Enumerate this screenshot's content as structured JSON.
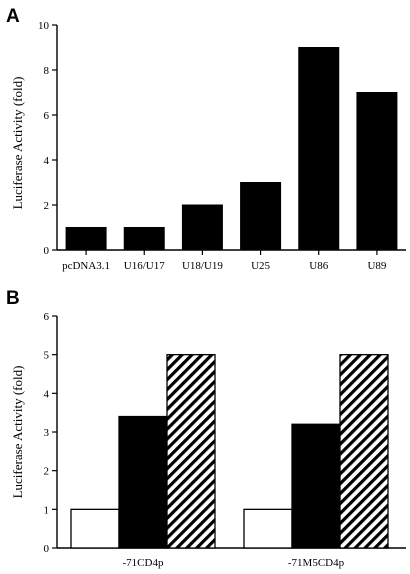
{
  "chart_data": [
    {
      "panel": "A",
      "type": "bar",
      "categories": [
        "pcDNA3.1",
        "U16/U17",
        "U18/U19",
        "U25",
        "U86",
        "U89"
      ],
      "values": [
        1,
        1,
        2,
        3,
        9,
        7
      ],
      "ylabel": "Luciferase Activity (fold)",
      "ylim": [
        0,
        10
      ],
      "yticks": [
        0,
        2,
        4,
        6,
        8,
        10
      ],
      "bar_color": "#000000",
      "grid": false
    },
    {
      "panel": "B",
      "type": "bar",
      "categories": [
        "-71CD4p",
        "-71M5CD4p"
      ],
      "series": [
        {
          "values": [
            1,
            1
          ],
          "fill": "white"
        },
        {
          "values": [
            3.4,
            3.2
          ],
          "fill": "black"
        },
        {
          "values": [
            5,
            5
          ],
          "fill": "diagonal-hatch"
        }
      ],
      "ylabel": "Luciferase Activity (fold)",
      "ylim": [
        0,
        6
      ],
      "yticks": [
        0,
        1,
        2,
        3,
        4,
        5,
        6
      ],
      "grid": false
    }
  ]
}
